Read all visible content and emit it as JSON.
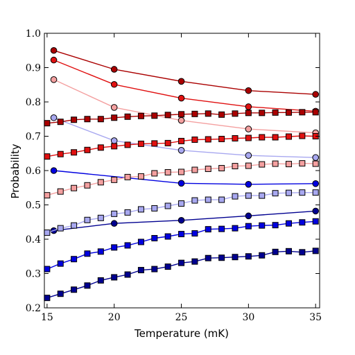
{
  "chart_data": {
    "type": "line",
    "title": "",
    "xlabel": "Temperature (mK)",
    "ylabel": "Probability",
    "xlim": [
      14.8,
      35.3
    ],
    "ylim": [
      0.2,
      1.0
    ],
    "xticks": [
      15,
      20,
      25,
      30,
      35
    ],
    "yticks": [
      0.2,
      0.3,
      0.4,
      0.5,
      0.6,
      0.7,
      0.8,
      0.9,
      1.0
    ],
    "grid": false,
    "legend": "none",
    "series": [
      {
        "color": "#aa0000",
        "marker": "circle",
        "x": [
          15.5,
          20,
          25,
          30,
          35
        ],
        "y": [
          0.95,
          0.895,
          0.86,
          0.833,
          0.822
        ]
      },
      {
        "color": "#e01010",
        "marker": "circle",
        "x": [
          15.5,
          20,
          25,
          30,
          35
        ],
        "y": [
          0.922,
          0.851,
          0.811,
          0.786,
          0.773
        ]
      },
      {
        "color": "#f4a0a0",
        "marker": "circle",
        "x": [
          15.5,
          20,
          25,
          30,
          35
        ],
        "y": [
          0.865,
          0.784,
          0.746,
          0.721,
          0.71
        ]
      },
      {
        "color": "#a8a8f0",
        "marker": "circle",
        "x": [
          15.5,
          20,
          25,
          30,
          35
        ],
        "y": [
          0.754,
          0.687,
          0.659,
          0.644,
          0.638
        ]
      },
      {
        "color": "#0000e0",
        "marker": "circle",
        "x": [
          15.5,
          25,
          30,
          35
        ],
        "y": [
          0.6,
          0.563,
          0.56,
          0.562
        ]
      },
      {
        "color": "#000090",
        "marker": "circle",
        "x": [
          15.5,
          20,
          25,
          30,
          35
        ],
        "y": [
          0.425,
          0.446,
          0.455,
          0.468,
          0.482
        ]
      },
      {
        "color": "#aa0000",
        "marker": "square",
        "x": [
          15,
          16,
          17,
          18,
          19,
          20,
          21,
          22,
          23,
          24,
          25,
          26,
          27,
          28,
          29,
          30,
          31,
          32,
          33,
          34,
          35
        ],
        "y": [
          0.738,
          0.742,
          0.748,
          0.75,
          0.75,
          0.754,
          0.757,
          0.759,
          0.76,
          0.762,
          0.764,
          0.765,
          0.766,
          0.763,
          0.766,
          0.768,
          0.768,
          0.769,
          0.769,
          0.77,
          0.77
        ]
      },
      {
        "color": "#e01010",
        "marker": "square",
        "x": [
          15,
          16,
          17,
          18,
          19,
          20,
          21,
          22,
          23,
          24,
          25,
          26,
          27,
          28,
          29,
          30,
          31,
          32,
          33,
          34,
          35
        ],
        "y": [
          0.641,
          0.648,
          0.653,
          0.66,
          0.667,
          0.671,
          0.675,
          0.678,
          0.679,
          0.68,
          0.686,
          0.69,
          0.691,
          0.692,
          0.694,
          0.695,
          0.697,
          0.697,
          0.699,
          0.701,
          0.7
        ]
      },
      {
        "color": "#f4a0a0",
        "marker": "square",
        "x": [
          15,
          16,
          17,
          18,
          19,
          20,
          21,
          22,
          23,
          24,
          25,
          26,
          27,
          28,
          29,
          30,
          31,
          32,
          33,
          34,
          35
        ],
        "y": [
          0.528,
          0.539,
          0.549,
          0.557,
          0.566,
          0.573,
          0.581,
          0.583,
          0.592,
          0.595,
          0.596,
          0.602,
          0.605,
          0.607,
          0.613,
          0.614,
          0.618,
          0.62,
          0.619,
          0.621,
          0.62
        ]
      },
      {
        "color": "#a8a8f0",
        "marker": "square",
        "x": [
          15,
          16,
          17,
          18,
          19,
          20,
          21,
          22,
          23,
          24,
          25,
          26,
          27,
          28,
          29,
          30,
          31,
          32,
          33,
          34,
          35
        ],
        "y": [
          0.419,
          0.432,
          0.44,
          0.456,
          0.462,
          0.474,
          0.478,
          0.487,
          0.49,
          0.497,
          0.504,
          0.513,
          0.515,
          0.515,
          0.525,
          0.527,
          0.527,
          0.534,
          0.535,
          0.536,
          0.536
        ]
      },
      {
        "color": "#0000e0",
        "marker": "square",
        "x": [
          15,
          16,
          17,
          18,
          19,
          20,
          21,
          22,
          23,
          24,
          25,
          26,
          27,
          28,
          29,
          30,
          31,
          32,
          33,
          34,
          35
        ],
        "y": [
          0.313,
          0.329,
          0.342,
          0.358,
          0.364,
          0.376,
          0.382,
          0.392,
          0.403,
          0.408,
          0.415,
          0.417,
          0.429,
          0.43,
          0.432,
          0.438,
          0.44,
          0.441,
          0.446,
          0.449,
          0.452
        ]
      },
      {
        "color": "#000090",
        "marker": "square",
        "x": [
          15,
          16,
          17,
          18,
          19,
          20,
          21,
          22,
          23,
          24,
          25,
          26,
          27,
          28,
          29,
          30,
          31,
          32,
          33,
          34,
          35
        ],
        "y": [
          0.229,
          0.241,
          0.253,
          0.265,
          0.28,
          0.289,
          0.297,
          0.31,
          0.313,
          0.32,
          0.331,
          0.335,
          0.345,
          0.346,
          0.348,
          0.35,
          0.353,
          0.363,
          0.365,
          0.362,
          0.366
        ]
      }
    ]
  }
}
